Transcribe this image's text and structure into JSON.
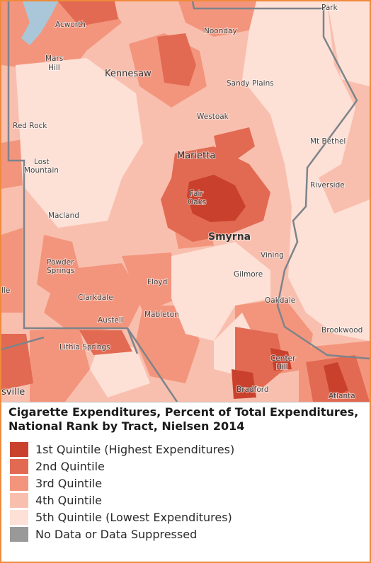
{
  "map": {
    "places": [
      {
        "id": "park",
        "label": "Park"
      },
      {
        "id": "acworth",
        "label": "Acworth"
      },
      {
        "id": "noonday",
        "label": "Noonday"
      },
      {
        "id": "mars-hill-1",
        "label": "Mars"
      },
      {
        "id": "mars-hill-2",
        "label": "Hill"
      },
      {
        "id": "kennesaw",
        "label": "Kennesaw"
      },
      {
        "id": "sandy-plains",
        "label": "Sandy Plains"
      },
      {
        "id": "westoak",
        "label": "Westoak"
      },
      {
        "id": "red-rock",
        "label": "Red Rock"
      },
      {
        "id": "mt-bethel",
        "label": "Mt Bethel"
      },
      {
        "id": "marietta",
        "label": "Marietta"
      },
      {
        "id": "lost-mountain-1",
        "label": "Lost"
      },
      {
        "id": "lost-mountain-2",
        "label": "Mountain"
      },
      {
        "id": "riverside",
        "label": "Riverside"
      },
      {
        "id": "fair-oaks-1",
        "label": "Fair"
      },
      {
        "id": "fair-oaks-2",
        "label": "Oaks"
      },
      {
        "id": "macland",
        "label": "Macland"
      },
      {
        "id": "smyrna",
        "label": "Smyrna"
      },
      {
        "id": "vinings",
        "label": "Vining"
      },
      {
        "id": "powder-springs-1",
        "label": "Powder"
      },
      {
        "id": "powder-springs-2",
        "label": "Springs"
      },
      {
        "id": "gilmore",
        "label": "Gilmore"
      },
      {
        "id": "lle",
        "label": "lle"
      },
      {
        "id": "floyd",
        "label": "Floyd"
      },
      {
        "id": "clarkdale",
        "label": "Clarkdale"
      },
      {
        "id": "oakdale",
        "label": "Oakdale"
      },
      {
        "id": "mableton",
        "label": "Mableton"
      },
      {
        "id": "austell",
        "label": "Austell"
      },
      {
        "id": "brookwood",
        "label": "Brookwood"
      },
      {
        "id": "lithia-springs",
        "label": "Lithia Springs"
      },
      {
        "id": "center-hill-1",
        "label": "Center"
      },
      {
        "id": "center-hill-2",
        "label": "Hill"
      },
      {
        "id": "sville",
        "label": "sville"
      },
      {
        "id": "bradford",
        "label": "Bradford"
      },
      {
        "id": "atlanta",
        "label": "Atlanta"
      }
    ]
  },
  "legend": {
    "title": "Cigarette Expenditures, Percent of Total Expenditures, National Rank by Tract, Nielsen 2014",
    "items": [
      {
        "label": "1st Quintile (Highest Expenditures)",
        "color": "#c9412c"
      },
      {
        "label": "2nd Quintile",
        "color": "#e26a52"
      },
      {
        "label": "3rd Quintile",
        "color": "#f3957d"
      },
      {
        "label": "4th Quintile",
        "color": "#f9bfae"
      },
      {
        "label": "5th Quintile (Lowest Expenditures)",
        "color": "#fde0d6"
      },
      {
        "label": "No Data or Data Suppressed",
        "color": "#999999"
      }
    ]
  },
  "colors": {
    "q1": "#c9412c",
    "q2": "#e26a52",
    "q3": "#f3957d",
    "q4": "#f9bfae",
    "q5": "#fde0d6",
    "county_border": "#7d848a",
    "water": "#a9c7d9",
    "frame": "#f08a3c"
  }
}
